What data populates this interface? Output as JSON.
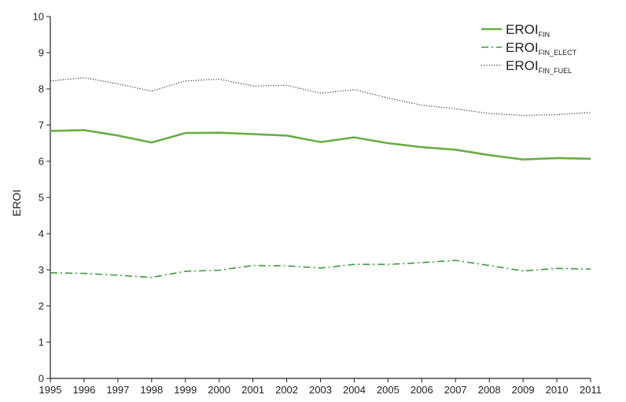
{
  "chart_data": {
    "type": "line",
    "title": "",
    "xlabel": "",
    "ylabel": "EROI",
    "ylim": [
      0,
      10
    ],
    "yticks": [
      0,
      1,
      2,
      3,
      4,
      5,
      6,
      7,
      8,
      9,
      10
    ],
    "x": [
      1995,
      1996,
      1997,
      1998,
      1999,
      2000,
      2001,
      2002,
      2003,
      2004,
      2005,
      2006,
      2007,
      2008,
      2009,
      2010,
      2011
    ],
    "grid": false,
    "legend_position": "top-right",
    "series": [
      {
        "name": "EROI_FIN",
        "legend_main": "EROI",
        "legend_sub": "FIN",
        "style": "solid",
        "color": "#6aad45",
        "values": [
          6.84,
          6.86,
          6.71,
          6.52,
          6.78,
          6.79,
          6.75,
          6.71,
          6.53,
          6.66,
          6.5,
          6.39,
          6.32,
          6.17,
          6.05,
          6.09,
          6.07
        ]
      },
      {
        "name": "EROI_FIN_ELECT",
        "legend_main": "EROI",
        "legend_sub": "FIN_ELECT",
        "style": "dashdot",
        "color": "#3f9a3f",
        "values": [
          2.92,
          2.9,
          2.85,
          2.79,
          2.96,
          2.99,
          3.12,
          3.11,
          3.05,
          3.15,
          3.15,
          3.2,
          3.26,
          3.12,
          2.97,
          3.04,
          3.02
        ]
      },
      {
        "name": "EROI_FIN_FUEL",
        "legend_main": "EROI",
        "legend_sub": "FIN_FUEL",
        "style": "dotted",
        "color": "#333333",
        "values": [
          8.22,
          8.31,
          8.14,
          7.94,
          8.22,
          8.27,
          8.08,
          8.1,
          7.88,
          7.98,
          7.75,
          7.55,
          7.45,
          7.32,
          7.27,
          7.29,
          7.35
        ]
      }
    ]
  }
}
